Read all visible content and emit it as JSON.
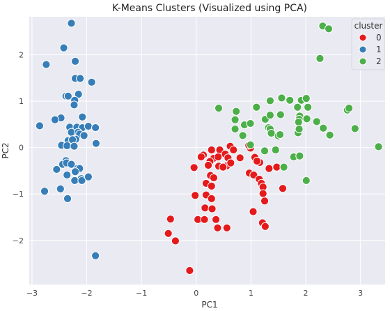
{
  "chart_data": {
    "type": "scatter",
    "title": "K-Means Clusters (Visualized using PCA)",
    "xlabel": "PC1",
    "ylabel": "PC2",
    "xlim": [
      -3.05,
      3.45
    ],
    "ylim": [
      -2.95,
      2.82
    ],
    "xticks": [
      -3,
      -2,
      -1,
      0,
      1,
      2,
      3
    ],
    "yticks": [
      -2,
      -1,
      0,
      1,
      2
    ],
    "grid": true,
    "legend": {
      "title": "cluster",
      "placement": "top-right"
    },
    "series": [
      {
        "name": "0",
        "color": "#e41a1c",
        "points": [
          [
            0.28,
            -0.05
          ],
          [
            0.43,
            -0.05
          ],
          [
            0.62,
            0.03
          ],
          [
            0.53,
            -0.14
          ],
          [
            0.68,
            -0.05
          ],
          [
            0.99,
            -0.01
          ],
          [
            0.96,
            0.05
          ],
          [
            0.13,
            -0.16
          ],
          [
            0.32,
            -0.23
          ],
          [
            0.4,
            -0.2
          ],
          [
            0.58,
            -0.22
          ],
          [
            0.8,
            -0.22
          ],
          [
            1.07,
            -0.21
          ],
          [
            1.16,
            -0.32
          ],
          [
            0.25,
            -0.3
          ],
          [
            0.41,
            -0.4
          ],
          [
            0.56,
            -0.39
          ],
          [
            0.63,
            -0.33
          ],
          [
            1.11,
            -0.29
          ],
          [
            0.09,
            -0.2
          ],
          [
            0.22,
            -0.38
          ],
          [
            -0.04,
            -0.43
          ],
          [
            0.49,
            -0.42
          ],
          [
            0.97,
            -0.55
          ],
          [
            1.05,
            -0.59
          ],
          [
            1.15,
            -0.68
          ],
          [
            1.33,
            -0.45
          ],
          [
            1.47,
            -0.42
          ],
          [
            0.26,
            -0.6
          ],
          [
            0.32,
            -0.65
          ],
          [
            0.18,
            -0.77
          ],
          [
            0.28,
            -0.83
          ],
          [
            1.19,
            -0.77
          ],
          [
            1.22,
            -0.85
          ],
          [
            1.58,
            -0.88
          ],
          [
            -0.02,
            -1.03
          ],
          [
            0.18,
            -1.02
          ],
          [
            0.28,
            -1.1
          ],
          [
            1.22,
            -0.99
          ],
          [
            0.16,
            -1.3
          ],
          [
            0.29,
            -1.32
          ],
          [
            1.25,
            -1.15
          ],
          [
            1.04,
            -1.38
          ],
          [
            0.03,
            -1.55
          ],
          [
            0.15,
            -1.55
          ],
          [
            0.36,
            -1.55
          ],
          [
            0.39,
            -1.73
          ],
          [
            0.56,
            -1.73
          ],
          [
            1.21,
            -1.62
          ],
          [
            1.26,
            -1.7
          ],
          [
            -0.47,
            -1.54
          ],
          [
            -0.51,
            -1.85
          ],
          [
            -0.38,
            -2.01
          ],
          [
            -0.12,
            -2.65
          ]
        ]
      },
      {
        "name": "1",
        "color": "#377eb8",
        "points": [
          [
            -2.28,
            2.68
          ],
          [
            -2.42,
            2.15
          ],
          [
            -2.74,
            1.79
          ],
          [
            -2.21,
            1.86
          ],
          [
            -2.21,
            1.49
          ],
          [
            -2.12,
            1.49
          ],
          [
            -1.91,
            1.41
          ],
          [
            -2.38,
            1.11
          ],
          [
            -2.34,
            1.11
          ],
          [
            -2.15,
            1.15
          ],
          [
            -2.22,
            1.02
          ],
          [
            -2.23,
            0.92
          ],
          [
            -2.47,
            0.64
          ],
          [
            -2.58,
            0.6
          ],
          [
            -2.08,
            0.66
          ],
          [
            -2.86,
            0.47
          ],
          [
            -2.31,
            0.44
          ],
          [
            -2.18,
            0.44
          ],
          [
            -2.08,
            0.43
          ],
          [
            -1.97,
            0.46
          ],
          [
            -1.84,
            0.43
          ],
          [
            -2.28,
            0.33
          ],
          [
            -2.16,
            0.33
          ],
          [
            -2.13,
            0.29
          ],
          [
            -2.05,
            0.26
          ],
          [
            -2.2,
            0.18
          ],
          [
            -2.34,
            0.15
          ],
          [
            -2.26,
            0.17
          ],
          [
            -2.46,
            0.05
          ],
          [
            -2.36,
            0.04
          ],
          [
            -2.23,
            0.03
          ],
          [
            -1.83,
            0.09
          ],
          [
            -2.38,
            -0.28
          ],
          [
            -2.44,
            -0.36
          ],
          [
            -2.37,
            -0.33
          ],
          [
            -2.28,
            -0.36
          ],
          [
            -2.55,
            -0.47
          ],
          [
            -2.17,
            -0.45
          ],
          [
            -2.13,
            -0.45
          ],
          [
            -2.21,
            -0.52
          ],
          [
            -2.36,
            -0.59
          ],
          [
            -2.1,
            -0.67
          ],
          [
            -2.22,
            -0.71
          ],
          [
            -2.09,
            -0.71
          ],
          [
            -1.97,
            -0.63
          ],
          [
            -2.77,
            -0.94
          ],
          [
            -2.48,
            -0.89
          ],
          [
            -2.35,
            -1.1
          ],
          [
            -1.84,
            -2.33
          ]
        ]
      },
      {
        "name": "2",
        "color": "#4daf4a",
        "points": [
          [
            2.31,
            2.62
          ],
          [
            2.42,
            2.56
          ],
          [
            2.26,
            1.92
          ],
          [
            0.41,
            0.85
          ],
          [
            0.73,
            0.78
          ],
          [
            1.1,
            0.87
          ],
          [
            1.35,
            1.01
          ],
          [
            1.56,
            1.07
          ],
          [
            1.71,
            1.02
          ],
          [
            1.92,
            1.02
          ],
          [
            2.01,
            1.06
          ],
          [
            2.04,
            0.87
          ],
          [
            1.85,
            0.87
          ],
          [
            2.76,
            0.81
          ],
          [
            2.79,
            0.85
          ],
          [
            1.26,
            0.61
          ],
          [
            1.35,
            0.7
          ],
          [
            1.54,
            0.71
          ],
          [
            1.89,
            0.68
          ],
          [
            1.88,
            0.61
          ],
          [
            1.87,
            0.55
          ],
          [
            2.02,
            0.62
          ],
          [
            2.2,
            0.56
          ],
          [
            2.32,
            0.42
          ],
          [
            2.44,
            0.27
          ],
          [
            2.9,
            0.41
          ],
          [
            0.71,
            0.6
          ],
          [
            0.88,
            0.49
          ],
          [
            0.99,
            0.52
          ],
          [
            1.32,
            0.43
          ],
          [
            1.35,
            0.4
          ],
          [
            1.37,
            0.31
          ],
          [
            1.5,
            0.25
          ],
          [
            1.53,
            0.28
          ],
          [
            1.86,
            0.32
          ],
          [
            1.88,
            0.4
          ],
          [
            0.71,
            0.4
          ],
          [
            0.85,
            0.26
          ],
          [
            0.99,
            0.06
          ],
          [
            1.25,
            -0.07
          ],
          [
            1.45,
            -0.05
          ],
          [
            1.78,
            -0.2
          ],
          [
            1.89,
            -0.18
          ],
          [
            1.6,
            -0.42
          ],
          [
            2.01,
            -0.71
          ],
          [
            3.33,
            0.02
          ]
        ]
      }
    ]
  }
}
